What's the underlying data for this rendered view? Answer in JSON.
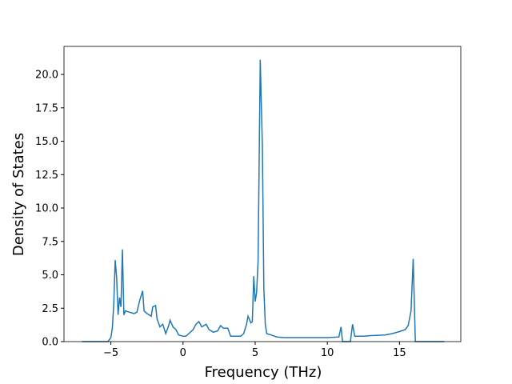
{
  "chart_data": {
    "type": "line",
    "xlabel": "Frequency (THz)",
    "ylabel": "Density of States",
    "x": [
      -7,
      -5.2,
      -5,
      -4.9,
      -4.8,
      -4.7,
      -4.6,
      -4.5,
      -4.4,
      -4.3,
      -4.2,
      -4.1,
      -4.0,
      -3.7,
      -3.4,
      -3.2,
      -3.0,
      -2.8,
      -2.7,
      -2.5,
      -2.2,
      -2.1,
      -1.9,
      -1.8,
      -1.6,
      -1.4,
      -1.2,
      -1.0,
      -0.9,
      -0.7,
      -0.5,
      -0.3,
      0,
      0.2,
      0.4,
      0.7,
      0.9,
      1.1,
      1.3,
      1.6,
      1.8,
      2.1,
      2.4,
      2.6,
      2.8,
      3.1,
      3.3,
      3.6,
      4.0,
      4.2,
      4.4,
      4.5,
      4.7,
      4.8,
      4.9,
      5.0,
      5.1,
      5.2,
      5.35,
      5.5,
      5.6,
      5.7,
      5.8,
      6.1,
      6.5,
      7,
      8,
      9,
      10,
      10.8,
      10.95,
      11.05,
      11.6,
      11.75,
      11.9,
      12.5,
      13,
      14,
      14.5,
      15,
      15.4,
      15.6,
      15.8,
      15.95,
      16.05,
      16.1,
      18.1
    ],
    "y": [
      0,
      0,
      0.3,
      1,
      2.8,
      6.1,
      4.8,
      2,
      3.3,
      2.6,
      6.9,
      2,
      2.3,
      2.2,
      2.1,
      2.2,
      3.1,
      3.8,
      2.3,
      2.1,
      1.9,
      2.6,
      2.7,
      1.7,
      1.1,
      1.3,
      0.6,
      1.2,
      1.6,
      1.1,
      0.9,
      0.5,
      0.4,
      0.4,
      0.6,
      0.9,
      1.3,
      1.5,
      1.1,
      1.3,
      0.9,
      0.7,
      0.8,
      1.2,
      1.0,
      1.0,
      0.4,
      0.4,
      0.4,
      0.6,
      1.3,
      1.9,
      1.4,
      1.5,
      4.9,
      3.0,
      3.7,
      6.0,
      21.1,
      14.5,
      4,
      1.3,
      0.6,
      0.5,
      0.35,
      0.3,
      0.3,
      0.3,
      0.3,
      0.35,
      1.1,
      0,
      0,
      1.3,
      0.4,
      0.4,
      0.45,
      0.5,
      0.6,
      0.75,
      0.9,
      1.2,
      2.3,
      6.2,
      2.0,
      0,
      0
    ],
    "color": "#1f77b4",
    "xlim": [
      -8.25,
      19.25
    ],
    "xticks": [
      {
        "value": -5,
        "label": "−5"
      },
      0,
      5,
      10,
      15
    ],
    "ylim": [
      0,
      22.1
    ],
    "yticks": [
      {
        "value": 0,
        "label": "0.0"
      },
      2.5,
      {
        "value": 5,
        "label": "5.0"
      },
      7.5,
      {
        "value": 10,
        "label": "10.0"
      },
      12.5,
      {
        "value": 15,
        "label": "15.0"
      },
      17.5,
      {
        "value": 20,
        "label": "20.0"
      }
    ]
  }
}
